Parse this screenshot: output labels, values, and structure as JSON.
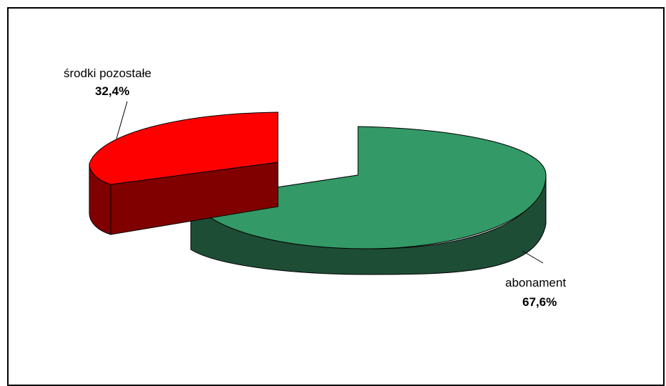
{
  "chart_data": {
    "type": "pie",
    "style": "3d-exploded",
    "slices": [
      {
        "name": "abonament",
        "percent_label": "67,6%",
        "value": 67.6,
        "top_color": "#339966",
        "side_color": "#1E4D36"
      },
      {
        "name": "środki pozostałe",
        "percent_label": "32,4%",
        "value": 32.4,
        "top_color": "#FF0000",
        "side_color": "#800000"
      }
    ],
    "legend": "none"
  }
}
